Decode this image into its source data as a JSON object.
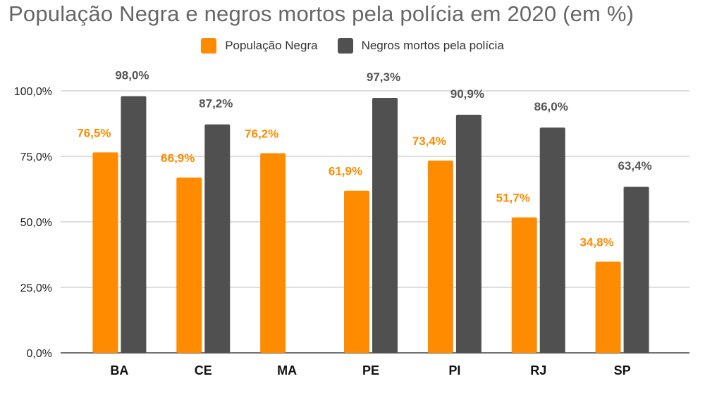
{
  "chart_data": {
    "type": "bar",
    "title": "População Negra e negros mortos pela polícia em 2020 (em %)",
    "categories": [
      "BA",
      "CE",
      "MA",
      "PE",
      "PI",
      "RJ",
      "SP"
    ],
    "series": [
      {
        "name": "População Negra",
        "color": "#ff8c00",
        "values": [
          76.5,
          66.9,
          76.2,
          61.9,
          73.4,
          51.7,
          34.8
        ],
        "labels": [
          "76,5%",
          "66,9%",
          "76,2%",
          "61,9%",
          "73,4%",
          "51,7%",
          "34,8%"
        ]
      },
      {
        "name": "Negros mortos pela polícia",
        "color": "#505050",
        "values": [
          98.0,
          87.2,
          null,
          97.3,
          90.9,
          86.0,
          63.4
        ],
        "labels": [
          "98,0%",
          "87,2%",
          "",
          "97,3%",
          "90,9%",
          "86,0%",
          "63,4%"
        ]
      }
    ],
    "yticks": [
      0,
      25,
      50,
      75,
      100
    ],
    "ytick_labels": [
      "0,0%",
      "25,0%",
      "50,0%",
      "75,0%",
      "100,0%"
    ],
    "ylim": [
      0,
      100
    ],
    "xlabel": "",
    "ylabel": "",
    "legend_position": "top-center",
    "grid": true
  }
}
